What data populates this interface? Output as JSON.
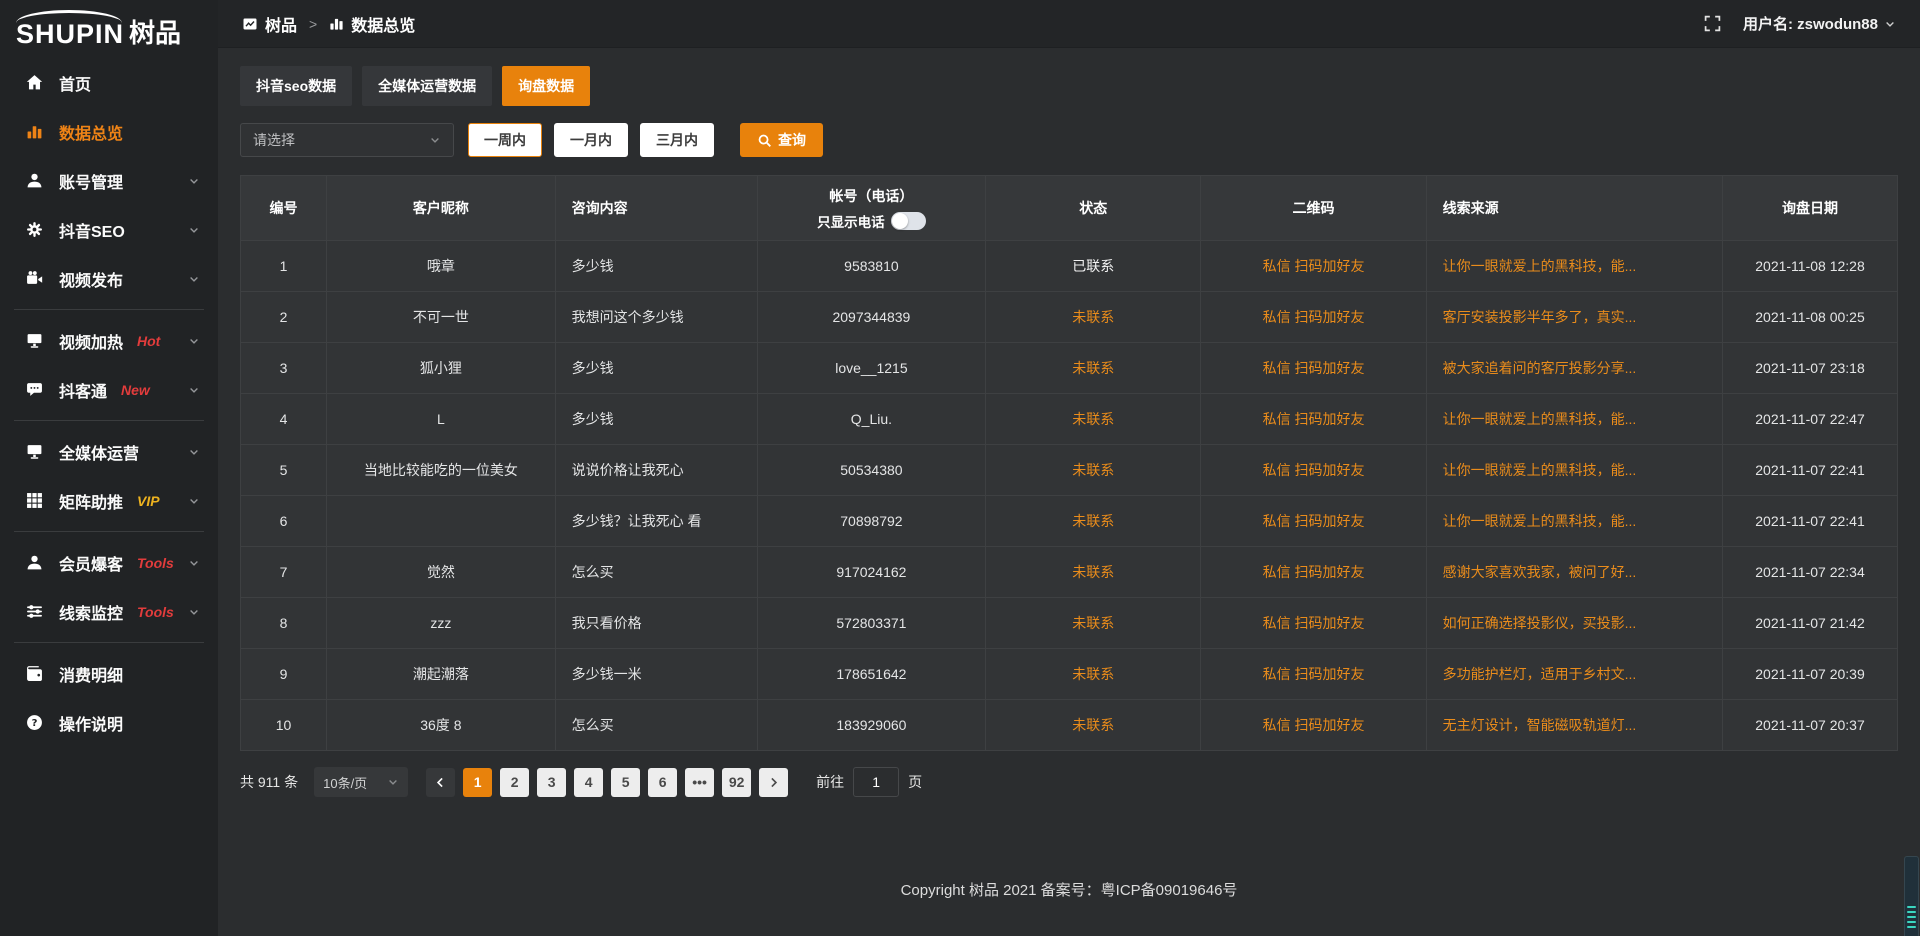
{
  "colors": {
    "accent": "#e8820c",
    "orange_link": "#ea8c1b",
    "badge_red": "#e23c3c",
    "badge_gold": "#eeb31f",
    "widget_teal": "#3ad6c0"
  },
  "brand": {
    "logo_en": "SHUPIN",
    "logo_cn": "树品"
  },
  "topbar": {
    "breadcrumb_root": "树品",
    "breadcrumb_sep": ">",
    "breadcrumb_current": "数据总览",
    "username_label": "用户名: zswodun88"
  },
  "sidebar": {
    "items": [
      {
        "name": "home",
        "icon": "home",
        "label": "首页"
      },
      {
        "name": "data-overview",
        "icon": "chart",
        "label": "数据总览",
        "active": true
      },
      {
        "name": "account-manage",
        "icon": "user",
        "label": "账号管理",
        "chevron": true
      },
      {
        "name": "douyin-seo",
        "icon": "gear",
        "label": "抖音SEO",
        "chevron": true
      },
      {
        "name": "video-publish",
        "icon": "video",
        "label": "视频发布",
        "chevron": true
      },
      {
        "divider": true
      },
      {
        "name": "video-heat",
        "icon": "screen",
        "label": "视频加热",
        "badge": "Hot",
        "badge_color": "red",
        "chevron": true
      },
      {
        "name": "douketong",
        "icon": "chat",
        "label": "抖客通",
        "badge": "New",
        "badge_color": "red",
        "chevron": true
      },
      {
        "divider": true
      },
      {
        "name": "media-operation",
        "icon": "monitor",
        "label": "全媒体运营",
        "chevron": true
      },
      {
        "name": "matrix-boost",
        "icon": "grid",
        "label": "矩阵助推",
        "badge": "VIP",
        "badge_color": "gold",
        "chevron": true
      },
      {
        "divider": true
      },
      {
        "name": "member-baoke",
        "icon": "user",
        "label": "会员爆客",
        "badge": "Tools",
        "badge_color": "red",
        "chevron": true
      },
      {
        "name": "clue-monitor",
        "icon": "sliders",
        "label": "线索监控",
        "badge": "Tools",
        "badge_color": "red",
        "chevron": true
      },
      {
        "divider": true
      },
      {
        "name": "consumption-detail",
        "icon": "wallet",
        "label": "消费明细"
      },
      {
        "name": "operation-guide",
        "icon": "question",
        "label": "操作说明"
      }
    ]
  },
  "tabs": [
    {
      "name": "douyin-seo-data",
      "label": "抖音seo数据",
      "active": false
    },
    {
      "name": "media-operation-data",
      "label": "全媒体运营数据",
      "active": false
    },
    {
      "name": "inquiry-data",
      "label": "询盘数据",
      "active": true
    }
  ],
  "filters": {
    "select_placeholder": "请选择",
    "ranges": [
      {
        "name": "week",
        "label": "一周内",
        "active": true
      },
      {
        "name": "month",
        "label": "一月内",
        "active": false
      },
      {
        "name": "quarter",
        "label": "三月内",
        "active": false
      }
    ],
    "search_label": "查询"
  },
  "table": {
    "columns": [
      "编号",
      "客户昵称",
      "咨询内容",
      "帐号（电话）",
      "状态",
      "二维码",
      "线索来源",
      "询盘日期"
    ],
    "phone_toggle_label": "只显示电话",
    "rows": [
      {
        "id": "1",
        "nickname": "哦章",
        "content": "多少钱",
        "account": "9583810",
        "status": "已联系",
        "contacted": true,
        "qrcode": "私信 扫码加好友",
        "source": "让你一眼就爱上的黑科技，能...",
        "date": "2021-11-08 12:28"
      },
      {
        "id": "2",
        "nickname": "不可一世",
        "content": "我想问这个多少钱",
        "account": "2097344839",
        "status": "未联系",
        "contacted": false,
        "qrcode": "私信 扫码加好友",
        "source": "客厅安装投影半年多了，真实...",
        "date": "2021-11-08 00:25"
      },
      {
        "id": "3",
        "nickname": "狐小狸",
        "content": "多少钱",
        "account": "love__1215",
        "status": "未联系",
        "contacted": false,
        "qrcode": "私信 扫码加好友",
        "source": "被大家追着问的客厅投影分享...",
        "date": "2021-11-07 23:18"
      },
      {
        "id": "4",
        "nickname": "L",
        "content": "多少钱",
        "account": "Q_Liu.",
        "status": "未联系",
        "contacted": false,
        "qrcode": "私信 扫码加好友",
        "source": "让你一眼就爱上的黑科技，能...",
        "date": "2021-11-07 22:47"
      },
      {
        "id": "5",
        "nickname": "当地比较能吃的一位美女",
        "content": "说说价格让我死心",
        "account": "50534380",
        "status": "未联系",
        "contacted": false,
        "qrcode": "私信 扫码加好友",
        "source": "让你一眼就爱上的黑科技，能...",
        "date": "2021-11-07 22:41"
      },
      {
        "id": "6",
        "nickname": "",
        "content": "多少钱？让我死心 看",
        "account": "70898792",
        "status": "未联系",
        "contacted": false,
        "qrcode": "私信 扫码加好友",
        "source": "让你一眼就爱上的黑科技，能...",
        "date": "2021-11-07 22:41"
      },
      {
        "id": "7",
        "nickname": "觉然",
        "content": "怎么买",
        "account": "917024162",
        "status": "未联系",
        "contacted": false,
        "qrcode": "私信 扫码加好友",
        "source": "感谢大家喜欢我家，被问了好...",
        "date": "2021-11-07 22:34"
      },
      {
        "id": "8",
        "nickname": "zzz",
        "content": "我只看价格",
        "account": "572803371",
        "status": "未联系",
        "contacted": false,
        "qrcode": "私信 扫码加好友",
        "source": "如何正确选择投影仪，买投影...",
        "date": "2021-11-07 21:42"
      },
      {
        "id": "9",
        "nickname": "潮起潮落",
        "content": "多少钱一米",
        "account": "178651642",
        "status": "未联系",
        "contacted": false,
        "qrcode": "私信 扫码加好友",
        "source": "多功能护栏灯，适用于乡村文...",
        "date": "2021-11-07 20:39"
      },
      {
        "id": "10",
        "nickname": "36度 8",
        "content": "怎么买",
        "account": "183929060",
        "status": "未联系",
        "contacted": false,
        "qrcode": "私信 扫码加好友",
        "source": "无主灯设计，智能磁吸轨道灯...",
        "date": "2021-11-07 20:37"
      }
    ]
  },
  "pagination": {
    "total_label": "共 911 条",
    "page_size_label": "10条/页",
    "pages": [
      "1",
      "2",
      "3",
      "4",
      "5",
      "6",
      "•••",
      "92"
    ],
    "active_page": "1",
    "goto_prefix": "前往",
    "goto_value": "1",
    "goto_suffix": "页"
  },
  "footer": {
    "copyright": "Copyright 树品 2021 备案号：粤ICP备09019646号"
  }
}
